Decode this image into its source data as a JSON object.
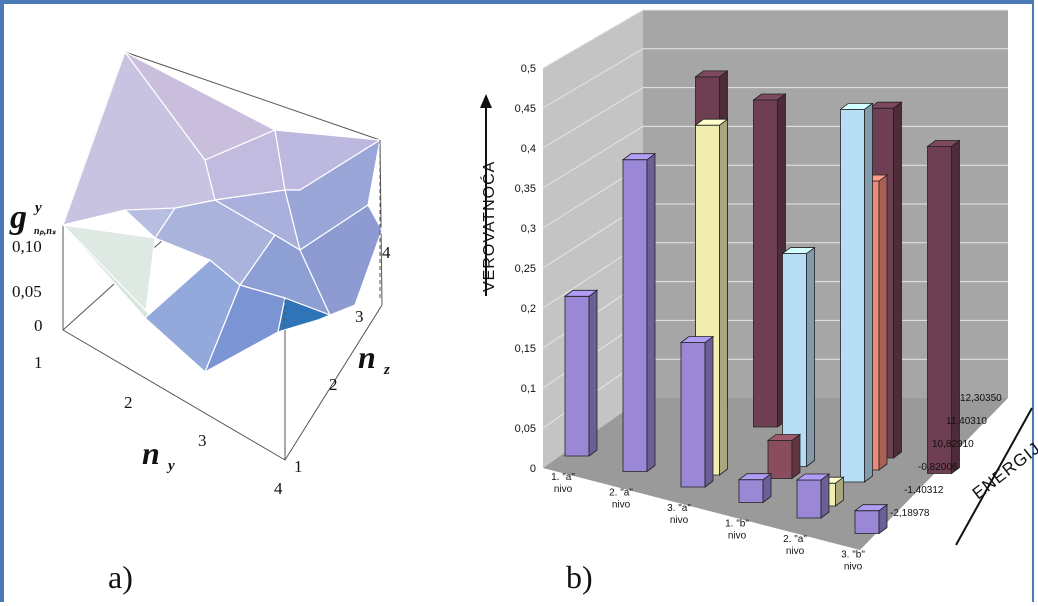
{
  "panel_a": {
    "caption": "a)",
    "z_label_main": "g",
    "z_label_sup": "y",
    "z_label_sub": "nₚ,nₛ",
    "z_ticks": [
      "0,10",
      "0,05",
      "0"
    ],
    "ny_label": "n",
    "ny_sub": "y",
    "ny_ticks": [
      "1",
      "2",
      "3",
      "4"
    ],
    "nz_label": "n",
    "nz_sub": "z",
    "nz_ticks": [
      "1",
      "2",
      "3",
      "4"
    ]
  },
  "panel_b": {
    "caption": "b)",
    "y_axis_label": "VEROVATNOĆA",
    "depth_axis_label": "ENERGIJA",
    "y_ticks": [
      "0",
      "0,05",
      "0,1",
      "0,15",
      "0,2",
      "0,25",
      "0,3",
      "0,35",
      "0,4",
      "0,45",
      "0,5"
    ],
    "categories": [
      [
        "1. \"a\"",
        "nivo"
      ],
      [
        "2. \"a\"",
        "nivo"
      ],
      [
        "3. \"a\"",
        "nivo"
      ],
      [
        "1. \"b\"",
        "nivo"
      ],
      [
        "2. \"a\"",
        "nivo"
      ],
      [
        "3. \"b\"",
        "nivo"
      ]
    ],
    "energy_ticks": [
      "-2,18978",
      "-1,40312",
      "-0,82006",
      "10,82910",
      "11,40310",
      "12,30350"
    ]
  },
  "colors": {
    "frame": "#4a7bb8",
    "series": [
      "#9a88d6",
      "#f2eeb2",
      "#8a4d5d",
      "#b8def6",
      "#f08878",
      "#6e3f52"
    ]
  },
  "chart_data": [
    {
      "type": "surface",
      "title": "",
      "xlabel": "n_y",
      "ylabel": "n_z",
      "zlabel": "g^y_{ny,nz}",
      "x": [
        1,
        2,
        3,
        4
      ],
      "y": [
        1,
        2,
        3,
        4
      ],
      "zlim": [
        0,
        0.1
      ],
      "z_ticks": [
        0,
        0.05,
        0.1
      ]
    },
    {
      "type": "bar",
      "subtype": "3d-bar",
      "title": "",
      "ylabel": "VEROVATNOĆA",
      "depth_label": "ENERGIJA",
      "categories": [
        "1. \"a\" nivo",
        "2. \"a\" nivo",
        "3. \"a\" nivo",
        "1. \"b\" nivo",
        "2. \"a\" nivo",
        "3. \"b\" nivo"
      ],
      "energy_levels": [
        "-2,18978",
        "-1,40312",
        "-0,82006",
        "10,82910",
        "11,40310",
        "12,30350"
      ],
      "ylim": [
        0,
        0.5
      ],
      "series": [
        {
          "values": [
            0.21,
            0.41,
            0.19,
            0.03,
            0.05,
            0.03
          ]
        },
        {
          "values": [
            0.0,
            0.0,
            0.46,
            0.0,
            0.03,
            0.0
          ]
        },
        {
          "values": [
            0.0,
            0.0,
            0.0,
            0.05,
            0.0,
            0.0
          ]
        },
        {
          "values": [
            0.0,
            0.0,
            0.0,
            0.28,
            0.49,
            0.0
          ]
        },
        {
          "values": [
            0.0,
            0.0,
            0.0,
            0.0,
            0.38,
            0.0
          ]
        },
        {
          "values": [
            0.0,
            0.44,
            0.43,
            0.0,
            0.46,
            0.43
          ]
        }
      ]
    }
  ]
}
